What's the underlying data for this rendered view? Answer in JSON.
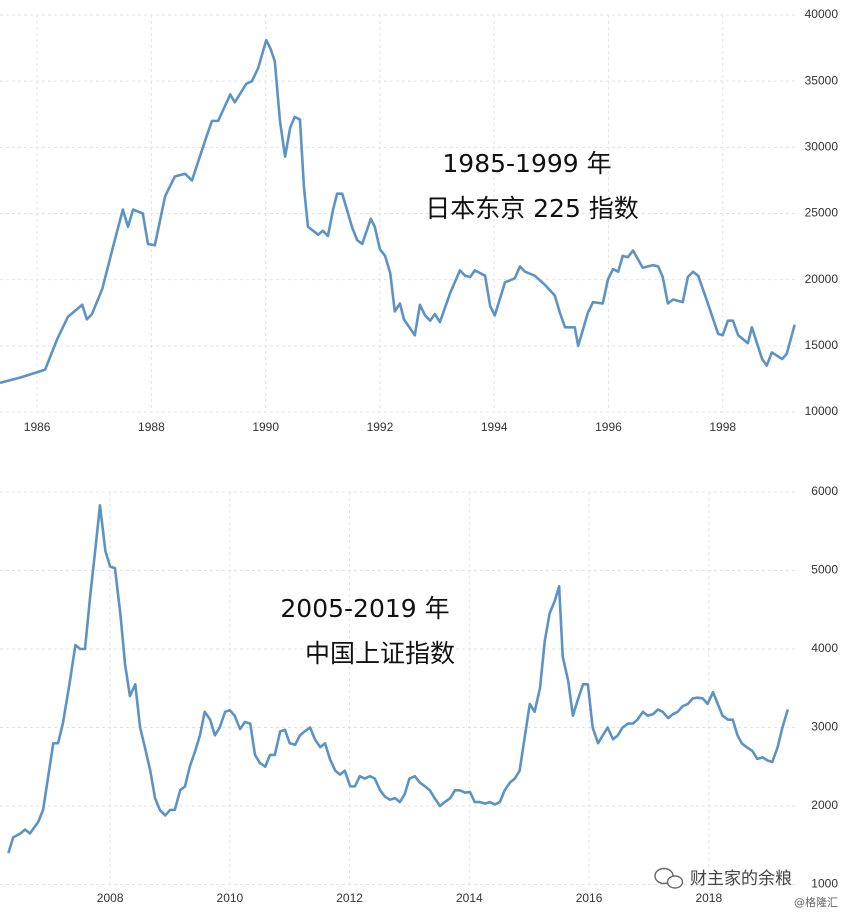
{
  "chart_data": [
    {
      "type": "line",
      "annotations": [
        "1985-1999 年",
        "日本东京 225 指数"
      ],
      "color": "#5b93c4",
      "grid": true,
      "xlim": [
        1985.35,
        1999.3
      ],
      "xticks": [
        1986,
        1988,
        1990,
        1992,
        1994,
        1996,
        1998
      ],
      "ylim": [
        10000,
        40000
      ],
      "yticks": [
        10000,
        15000,
        20000,
        25000,
        30000,
        35000,
        40000
      ],
      "x": [
        1985.35,
        1985.7,
        1986.0,
        1986.14,
        1986.35,
        1986.54,
        1986.79,
        1986.87,
        1986.96,
        1987.14,
        1987.33,
        1987.5,
        1987.59,
        1987.68,
        1987.85,
        1987.94,
        1988.06,
        1988.24,
        1988.41,
        1988.59,
        1988.71,
        1988.94,
        1989.06,
        1989.17,
        1989.38,
        1989.46,
        1989.66,
        1989.76,
        1989.87,
        1990.01,
        1990.08,
        1990.16,
        1990.25,
        1990.34,
        1990.43,
        1990.51,
        1990.6,
        1990.67,
        1990.74,
        1990.92,
        1991.0,
        1991.09,
        1991.18,
        1991.25,
        1991.34,
        1991.51,
        1991.6,
        1991.69,
        1991.84,
        1991.91,
        1992.0,
        1992.09,
        1992.18,
        1992.26,
        1992.35,
        1992.42,
        1992.61,
        1992.7,
        1992.79,
        1992.88,
        1992.96,
        1993.05,
        1993.23,
        1993.4,
        1993.49,
        1993.58,
        1993.66,
        1993.84,
        1993.93,
        1994.01,
        1994.19,
        1994.36,
        1994.45,
        1994.54,
        1994.71,
        1994.89,
        1995.06,
        1995.15,
        1995.24,
        1995.41,
        1995.47,
        1995.64,
        1995.73,
        1995.9,
        1995.99,
        1996.08,
        1996.17,
        1996.25,
        1996.34,
        1996.43,
        1996.6,
        1996.78,
        1996.87,
        1996.95,
        1997.04,
        1997.13,
        1997.3,
        1997.39,
        1997.48,
        1997.57,
        1997.74,
        1997.92,
        1998.0,
        1998.09,
        1998.18,
        1998.27,
        1998.44,
        1998.51,
        1998.69,
        1998.77,
        1998.86,
        1999.04,
        1999.12,
        1999.26
      ],
      "values": [
        12200,
        12600,
        13000,
        13200,
        15500,
        17200,
        18100,
        17000,
        17400,
        19300,
        22500,
        25300,
        24000,
        25300,
        25000,
        22700,
        22600,
        26300,
        27800,
        28000,
        27500,
        30500,
        32000,
        32000,
        34000,
        33400,
        34800,
        35000,
        36000,
        38100,
        37500,
        36500,
        32000,
        29300,
        31500,
        32300,
        32100,
        27000,
        24000,
        23400,
        23700,
        23300,
        25300,
        26500,
        26500,
        24000,
        23000,
        22700,
        24600,
        24000,
        22300,
        21800,
        20500,
        17600,
        18200,
        17000,
        15800,
        18100,
        17300,
        16900,
        17400,
        16800,
        19000,
        20700,
        20300,
        20200,
        20700,
        20300,
        18000,
        17300,
        19800,
        20100,
        21000,
        20600,
        20300,
        19600,
        18800,
        17500,
        16400,
        16400,
        15000,
        17500,
        18300,
        18200,
        20000,
        20800,
        20600,
        21800,
        21700,
        22200,
        20900,
        21100,
        21000,
        20200,
        18200,
        18500,
        18300,
        20200,
        20600,
        20300,
        18200,
        15900,
        15800,
        16900,
        16900,
        15800,
        15200,
        16400,
        14000,
        13500,
        14500,
        14000,
        14400,
        16600
      ]
    },
    {
      "type": "line",
      "annotations": [
        "2005-2019 年",
        "中国上证指数"
      ],
      "color": "#5b93c4",
      "grid": true,
      "xlim": [
        2006.16,
        2019.44
      ],
      "xticks": [
        2008,
        2010,
        2012,
        2014,
        2016,
        2018
      ],
      "ylim": [
        1000,
        6000
      ],
      "yticks": [
        1000,
        2000,
        3000,
        4000,
        5000,
        6000
      ],
      "x": [
        2006.3,
        2006.38,
        2006.5,
        2006.58,
        2006.66,
        2006.8,
        2006.88,
        2006.96,
        2007.05,
        2007.13,
        2007.21,
        2007.33,
        2007.42,
        2007.5,
        2007.58,
        2007.67,
        2007.75,
        2007.83,
        2007.92,
        2008.0,
        2008.08,
        2008.17,
        2008.25,
        2008.33,
        2008.42,
        2008.5,
        2008.58,
        2008.67,
        2008.75,
        2008.83,
        2008.92,
        2009.0,
        2009.08,
        2009.17,
        2009.25,
        2009.33,
        2009.42,
        2009.5,
        2009.58,
        2009.67,
        2009.75,
        2009.83,
        2009.92,
        2010.0,
        2010.08,
        2010.17,
        2010.25,
        2010.34,
        2010.42,
        2010.5,
        2010.59,
        2010.67,
        2010.75,
        2010.84,
        2010.92,
        2011.0,
        2011.09,
        2011.17,
        2011.25,
        2011.34,
        2011.42,
        2011.51,
        2011.59,
        2011.67,
        2011.76,
        2011.84,
        2011.92,
        2012.01,
        2012.09,
        2012.17,
        2012.25,
        2012.34,
        2012.42,
        2012.51,
        2012.59,
        2012.67,
        2012.76,
        2012.84,
        2012.92,
        2013.0,
        2013.09,
        2013.17,
        2013.26,
        2013.34,
        2013.42,
        2013.51,
        2013.59,
        2013.68,
        2013.76,
        2013.84,
        2013.93,
        2014.01,
        2014.09,
        2014.18,
        2014.26,
        2014.34,
        2014.43,
        2014.51,
        2014.59,
        2014.68,
        2014.76,
        2014.84,
        2014.93,
        2015.01,
        2015.09,
        2015.18,
        2015.26,
        2015.34,
        2015.43,
        2015.5,
        2015.56,
        2015.65,
        2015.73,
        2015.81,
        2015.9,
        2015.98,
        2016.06,
        2016.15,
        2016.23,
        2016.31,
        2016.4,
        2016.48,
        2016.56,
        2016.65,
        2016.73,
        2016.81,
        2016.9,
        2016.98,
        2017.07,
        2017.15,
        2017.23,
        2017.32,
        2017.4,
        2017.48,
        2017.56,
        2017.65,
        2017.73,
        2017.81,
        2017.9,
        2017.98,
        2018.07,
        2018.15,
        2018.23,
        2018.32,
        2018.4,
        2018.48,
        2018.55,
        2018.63,
        2018.73,
        2018.81,
        2018.9,
        2018.98,
        2019.06,
        2019.15,
        2019.23,
        2019.32
      ],
      "values": [
        1400,
        1600,
        1650,
        1700,
        1650,
        1800,
        1950,
        2350,
        2800,
        2800,
        3050,
        3600,
        4050,
        4000,
        4000,
        4700,
        5250,
        5830,
        5250,
        5050,
        5030,
        4450,
        3800,
        3400,
        3550,
        3000,
        2750,
        2450,
        2100,
        1950,
        1880,
        1950,
        1950,
        2200,
        2250,
        2500,
        2700,
        2900,
        3200,
        3100,
        2900,
        3000,
        3200,
        3220,
        3150,
        2980,
        3070,
        3050,
        2650,
        2550,
        2500,
        2650,
        2650,
        2950,
        2970,
        2800,
        2780,
        2900,
        2950,
        3000,
        2850,
        2750,
        2800,
        2600,
        2450,
        2400,
        2450,
        2250,
        2250,
        2380,
        2350,
        2380,
        2350,
        2200,
        2120,
        2080,
        2100,
        2050,
        2150,
        2350,
        2380,
        2300,
        2250,
        2200,
        2100,
        2000,
        2050,
        2100,
        2200,
        2200,
        2170,
        2180,
        2050,
        2050,
        2030,
        2050,
        2020,
        2050,
        2200,
        2300,
        2350,
        2450,
        2900,
        3300,
        3200,
        3500,
        4100,
        4450,
        4620,
        4800,
        3900,
        3600,
        3150,
        3350,
        3550,
        3550,
        3000,
        2800,
        2900,
        3000,
        2850,
        2900,
        3000,
        3050,
        3050,
        3100,
        3200,
        3150,
        3170,
        3230,
        3200,
        3120,
        3170,
        3200,
        3270,
        3300,
        3370,
        3380,
        3370,
        3300,
        3450,
        3300,
        3150,
        3100,
        3100,
        2900,
        2800,
        2750,
        2700,
        2600,
        2620,
        2580,
        2560,
        2750,
        3000,
        3230
      ]
    }
  ],
  "watermark": {
    "text": "财主家的余粮",
    "source": "@格隆汇"
  }
}
